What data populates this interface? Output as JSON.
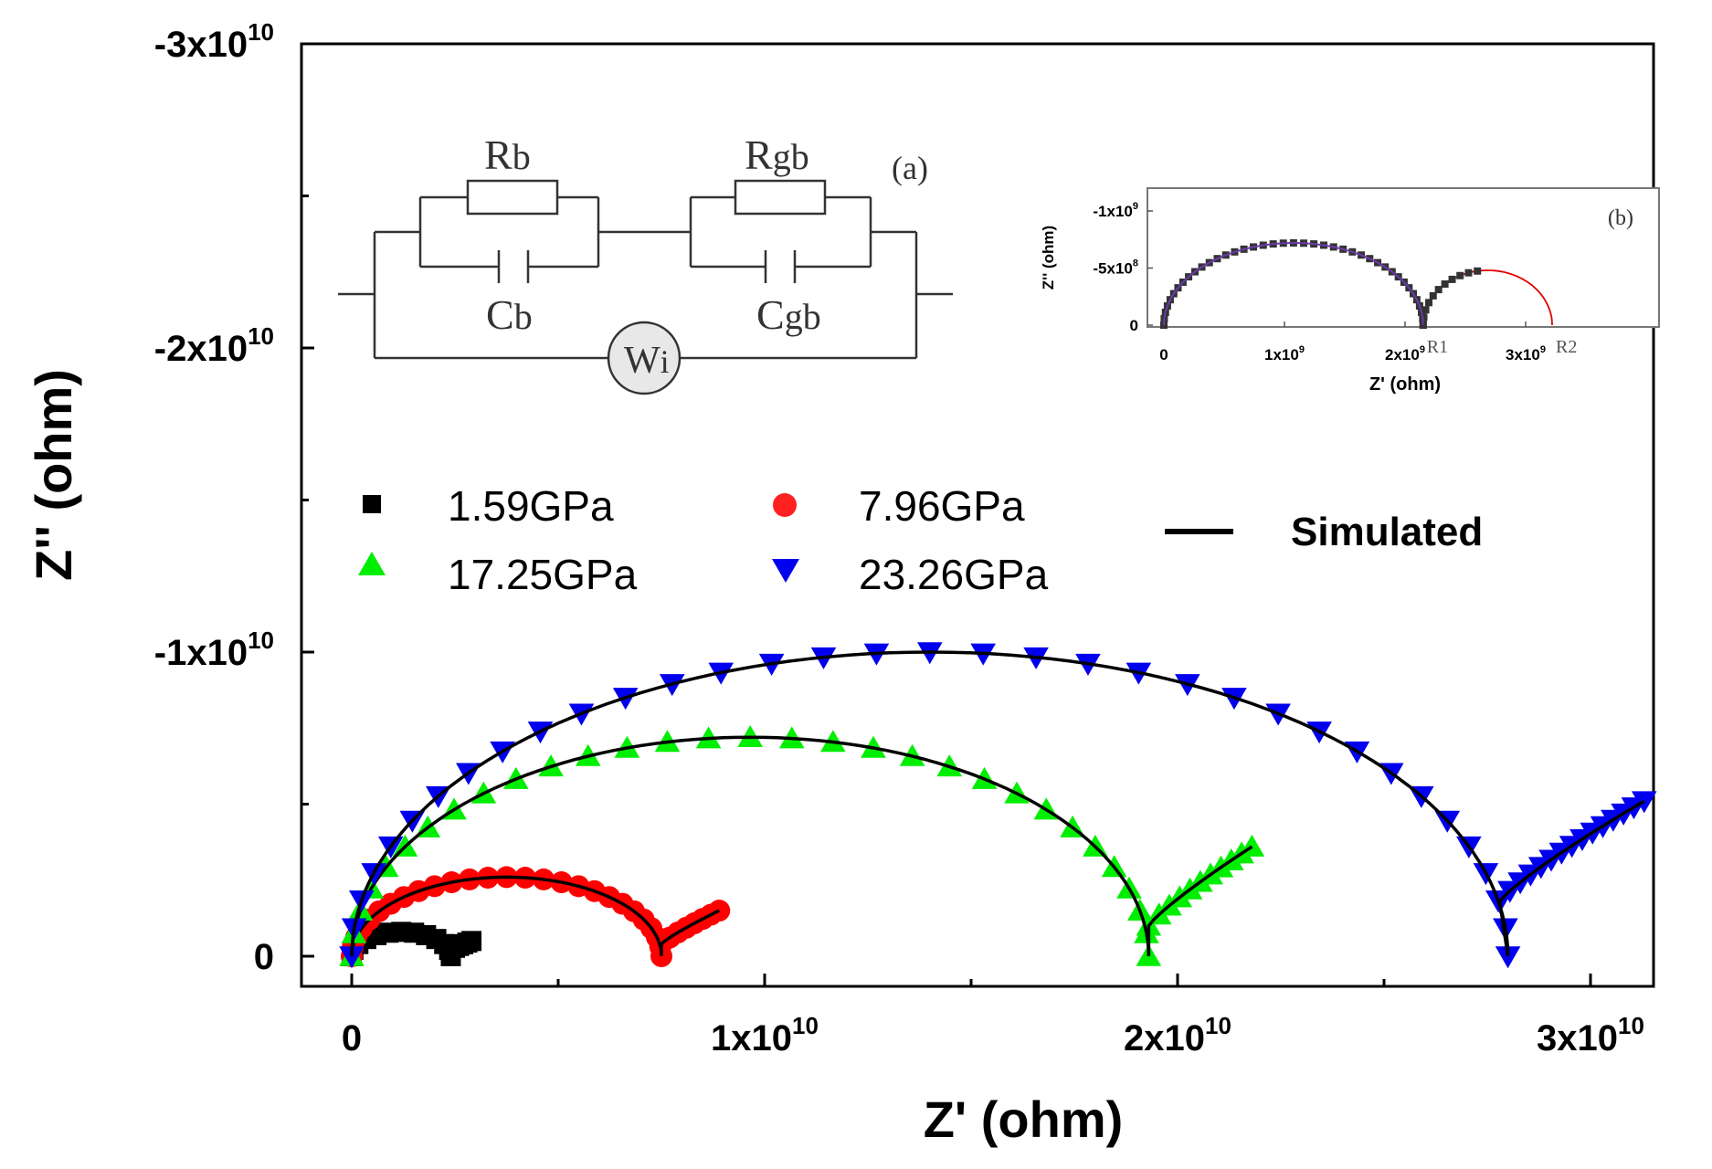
{
  "chart_data": [
    {
      "type": "scatter",
      "xlabel": "Z' (ohm)",
      "ylabel": "Z'' (ohm)",
      "xlim": [
        -1000000000.0,
        31500000000.0
      ],
      "ylim": [
        1000000000.0,
        -30000000000.0
      ],
      "y_inverted": true,
      "x_ticks": [
        {
          "value": 0,
          "label": "0",
          "exp": ""
        },
        {
          "value": 10000000000.0,
          "label": "1x10",
          "exp": "10"
        },
        {
          "value": 20000000000.0,
          "label": "2x10",
          "exp": "10"
        },
        {
          "value": 30000000000.0,
          "label": "3x10",
          "exp": "10"
        }
      ],
      "y_ticks": [
        {
          "value": 0,
          "label": "0",
          "exp": ""
        },
        {
          "value": -10000000000.0,
          "label": "-1x10",
          "exp": "10"
        },
        {
          "value": -20000000000.0,
          "label": "-2x10",
          "exp": "10"
        },
        {
          "value": -30000000000.0,
          "label": "-3x10",
          "exp": "10"
        }
      ],
      "grid": false,
      "legend_position": "center-left",
      "simulated_label": "Simulated",
      "series": [
        {
          "name": "1.59GPa",
          "marker": "square",
          "color": "#000000",
          "arcs": [
            {
              "start": 0,
              "end": 2400000000.0,
              "height": 800000000.0
            }
          ],
          "tail": {
            "from": [
              2400000000.0,
              -200000000.0
            ],
            "to": [
              2900000000.0,
              -500000000.0
            ]
          }
        },
        {
          "name": "7.96GPa",
          "marker": "circle",
          "color": "#ff0000",
          "arcs": [
            {
              "start": 0,
              "end": 7500000000.0,
              "height": 2600000000.0
            }
          ],
          "tail": {
            "from": [
              7500000000.0,
              -400000000.0
            ],
            "to": [
              8900000000.0,
              -1500000000.0
            ]
          }
        },
        {
          "name": "17.25GPa",
          "marker": "triangle-up",
          "color": "#00ee00",
          "arcs": [
            {
              "start": 0,
              "end": 19300000000.0,
              "height": 7200000000.0
            }
          ],
          "tail": {
            "from": [
              19300000000.0,
              -1000000000.0
            ],
            "to": [
              21800000000.0,
              -3600000000.0
            ]
          }
        },
        {
          "name": "23.26GPa",
          "marker": "triangle-down",
          "color": "#0000ee",
          "arcs": [
            {
              "start": 0,
              "end": 28000000000.0,
              "height": 10000000000.0
            }
          ],
          "tail": {
            "from": [
              27800000000.0,
              -1800000000.0
            ],
            "to": [
              31300000000.0,
              -5100000000.0
            ]
          }
        }
      ]
    },
    {
      "type": "scatter",
      "panel_label": "(b)",
      "xlabel": "Z' (ohm)",
      "ylabel": "Z'' (ohm)",
      "xlim": [
        -100000000.0,
        3500000000.0
      ],
      "ylim": [
        0,
        -1150000000.0
      ],
      "x_ticks": [
        {
          "value": 0,
          "label": "0",
          "exp": ""
        },
        {
          "value": 1000000000.0,
          "label": "1x10",
          "exp": "9"
        },
        {
          "value": 2000000000.0,
          "label": "2x10",
          "exp": "9"
        },
        {
          "value": 3000000000.0,
          "label": "3x10",
          "exp": "9"
        }
      ],
      "y_ticks": [
        {
          "value": 0,
          "label": "0",
          "exp": ""
        },
        {
          "value": -500000000.0,
          "label": "-5x10",
          "exp": "8"
        },
        {
          "value": -1000000000.0,
          "label": "-1x10",
          "exp": "9"
        }
      ],
      "annotations": [
        "R1",
        "R2"
      ],
      "R1": 2150000000.0,
      "R2": 3220000000.0,
      "arc1_height": 720000000.0,
      "arc2_height": 480000000.0,
      "data_end": 2600000000.0
    }
  ],
  "circuit": {
    "panel_label": "(a)",
    "r_bulk": "R",
    "r_bulk_sub": "b",
    "c_bulk": "C",
    "c_bulk_sub": "b",
    "r_gb": "R",
    "r_gb_sub": "gb",
    "c_gb": "C",
    "c_gb_sub": "gb",
    "warburg": "W",
    "warburg_sub": "i"
  }
}
